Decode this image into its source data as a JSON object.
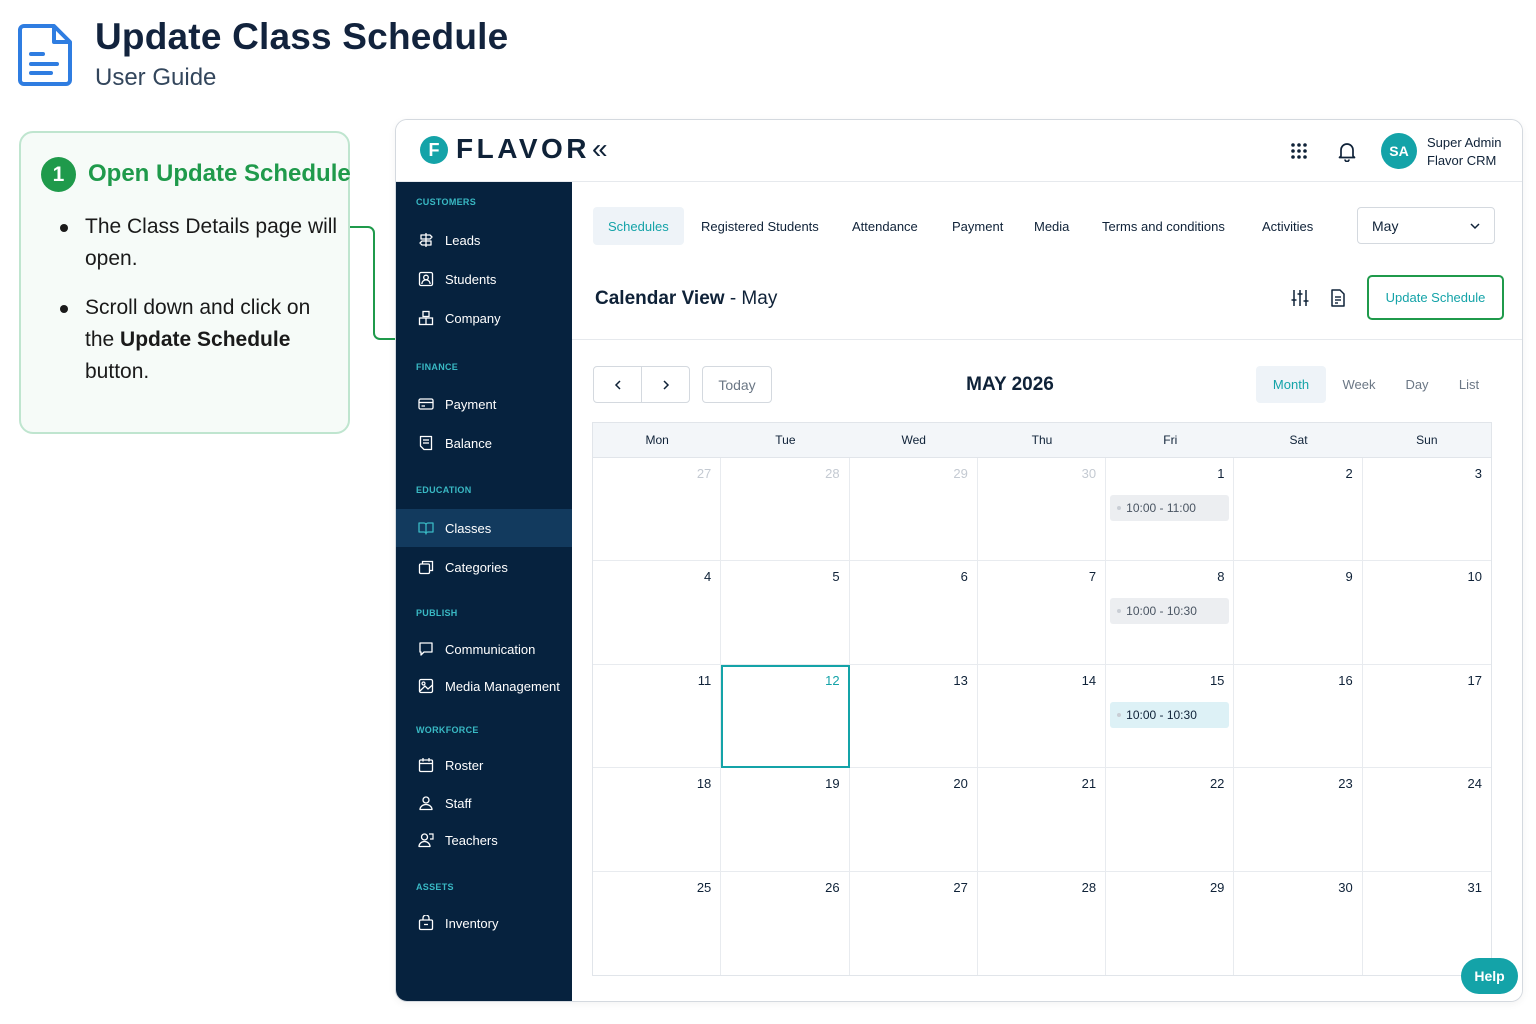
{
  "guide": {
    "title": "Update Class Schedule",
    "subtitle": "User Guide",
    "icon": "document-icon"
  },
  "step": {
    "number": "1",
    "title": "Open Update Schedule",
    "bullet1": "The Class Details page will open.",
    "bullet2_pre": "Scroll down and click on the ",
    "bullet2_bold": "Update Schedule",
    "bullet2_post": " button."
  },
  "app": {
    "logo_letter": "F",
    "logo_text": "FLAVOR",
    "collapse_icon": "double-chevron-left-icon",
    "avatar_initials": "SA",
    "user_name": "Super Admin",
    "user_org": "Flavor CRM"
  },
  "sidebar": {
    "sections": {
      "customers": "CUSTOMERS",
      "finance": "FINANCE",
      "education": "EDUCATION",
      "publish": "PUBLISH",
      "workforce": "WORKFORCE",
      "assets": "ASSETS"
    },
    "items": {
      "leads": "Leads",
      "students": "Students",
      "company": "Company",
      "payment": "Payment",
      "balance": "Balance",
      "classes": "Classes",
      "categories": "Categories",
      "communication": "Communication",
      "media_management": "Media Management",
      "roster": "Roster",
      "staff": "Staff",
      "teachers": "Teachers",
      "inventory": "Inventory"
    },
    "active": "Classes"
  },
  "tabs": {
    "schedules": "Schedules",
    "registered_students": "Registered Students",
    "attendance": "Attendance",
    "payment": "Payment",
    "media": "Media",
    "terms": "Terms and conditions",
    "activities": "Activities",
    "active": "Schedules"
  },
  "month_select": {
    "value": "May"
  },
  "calendar_view": {
    "title_bold": "Calendar View",
    "title_rest": " - May",
    "update_button": "Update Schedule"
  },
  "calendar": {
    "today_label": "Today",
    "month_label": "MAY 2026",
    "views": {
      "month": "Month",
      "week": "Week",
      "day": "Day",
      "list": "List"
    },
    "active_view": "Month",
    "weekdays": [
      "Mon",
      "Tue",
      "Wed",
      "Thu",
      "Fri",
      "Sat",
      "Sun"
    ],
    "days": [
      "27",
      "28",
      "29",
      "30",
      "1",
      "2",
      "3",
      "4",
      "5",
      "6",
      "7",
      "8",
      "9",
      "10",
      "11",
      "12",
      "13",
      "14",
      "15",
      "16",
      "17",
      "18",
      "19",
      "20",
      "21",
      "22",
      "23",
      "24",
      "25",
      "26",
      "27",
      "28",
      "29",
      "30",
      "31"
    ],
    "events": {
      "may1": "10:00 - 11:00",
      "may8": "10:00 - 10:30",
      "may15": "10:00 - 10:30"
    },
    "today_date": "12"
  },
  "help": {
    "label": "Help"
  },
  "colors": {
    "accent": "#14a3a8",
    "step_green": "#1f9a4b",
    "sidebar_bg": "#06223e",
    "section_label": "#39b9c4"
  }
}
